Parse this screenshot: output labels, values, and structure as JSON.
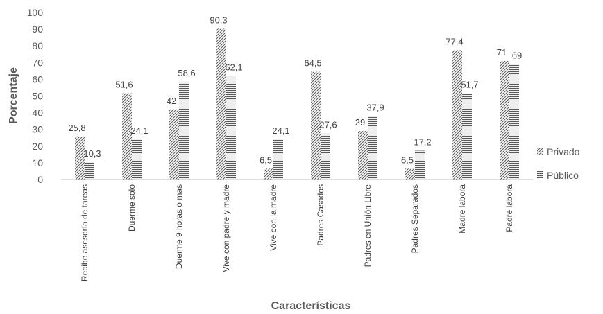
{
  "chart_data": {
    "type": "bar",
    "title": "",
    "xlabel": "Características",
    "ylabel": "Porcentaje",
    "ylim": [
      0,
      100
    ],
    "yticks": [
      0,
      10,
      20,
      30,
      40,
      50,
      60,
      70,
      80,
      90,
      100
    ],
    "grid": false,
    "legend_position": "right",
    "categories": [
      "Recibe asesoría de tareas",
      "Duerme solo",
      "Duerme 9 horas o mas",
      "Vive con padre y madre",
      "Vive con la madre",
      "Padres Casados",
      "Padres en Unión Libre",
      "Padres Separados",
      "Madre labora",
      "Padre labora"
    ],
    "series": [
      {
        "name": "Privado",
        "pattern": "diagonal-hatch",
        "values": [
          25.8,
          51.6,
          42,
          90.3,
          6.5,
          64.5,
          29,
          6.5,
          77.4,
          71
        ],
        "labels": [
          "25,8",
          "51,6",
          "42",
          "90,3",
          "6,5",
          "64,5",
          "29",
          "6,5",
          "77,4",
          "71"
        ]
      },
      {
        "name": "Público",
        "pattern": "horizontal-lines",
        "values": [
          10.3,
          24.1,
          58.6,
          62.1,
          24.1,
          27.6,
          37.9,
          17.2,
          51.7,
          69
        ],
        "labels": [
          "10,3",
          "24,1",
          "58,6",
          "62,1",
          "24,1",
          "27,6",
          "37,9",
          "17,2",
          "51,7",
          "69"
        ]
      }
    ],
    "colors": {
      "pattern": "#595959",
      "axis": "#bfbfbf",
      "text": "#595959"
    }
  }
}
